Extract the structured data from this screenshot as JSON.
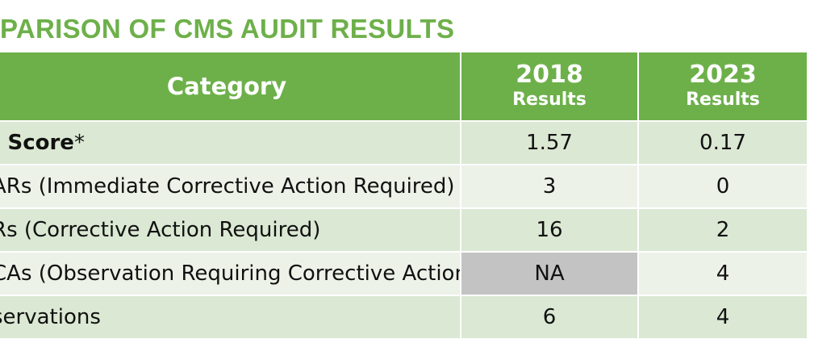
{
  "title": "PARISON OF CMS AUDIT RESULTS",
  "header": {
    "category": "Category",
    "col2018_year": "2018",
    "col2018_sub": "Results",
    "col2023_year": "2023",
    "col2023_sub": "Results"
  },
  "rows": [
    {
      "category": "t Score",
      "suffix": "*",
      "v2018": "1.57",
      "v2023": "0.17"
    },
    {
      "category": "ARs (Immediate Corrective Action Required)",
      "v2018": "3",
      "v2023": "0"
    },
    {
      "category": "Rs (Corrective Action Required)",
      "v2018": "16",
      "v2023": "2"
    },
    {
      "category": "CAs (Observation Requiring Corrective Action)",
      "v2018": "NA",
      "v2023": "4"
    },
    {
      "category": "servations",
      "v2018": "6",
      "v2023": "4"
    }
  ],
  "colors": {
    "title": "#6db04a",
    "header_bg": "#6db04a",
    "row_shade_a": "#dbe8d3",
    "row_shade_b": "#ecf2e8",
    "na_cell": "#c3c3c3"
  }
}
